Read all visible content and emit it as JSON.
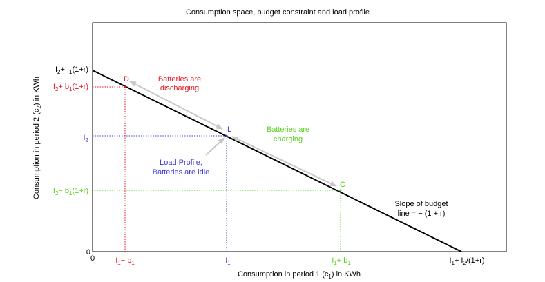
{
  "title": "Consumption space, budget constraint and load profile",
  "x_axis": {
    "label_prefix": "Consumption in period 1 (c",
    "label_sub": "1",
    "label_suffix": ") in KWh",
    "origin_label": "0",
    "ticks": {
      "left": {
        "base": "I",
        "sub": "1",
        "rest": "− b",
        "sub2": "1"
      },
      "mid": {
        "base": "I",
        "sub": "1"
      },
      "right": {
        "base": "I",
        "sub": "1",
        "rest": "+ b",
        "sub2": "1"
      },
      "intercept": {
        "base": "I",
        "sub": "1",
        "rest": "+ I",
        "sub2": "2",
        "tail": "/(1+r)"
      }
    }
  },
  "y_axis": {
    "label_prefix": "Consumption in period 2 (c",
    "label_sub": "2",
    "label_suffix": ") in KWh",
    "origin_label": "0",
    "ticks": {
      "intercept": {
        "base": "I",
        "sub": "2",
        "rest": "+ I",
        "sub2": "1",
        "tail": "(1+r)"
      },
      "upper": {
        "base": "I",
        "sub": "2",
        "rest": "+ b",
        "sub2": "1",
        "tail": "(1+r)"
      },
      "mid": {
        "base": "I",
        "sub": "2"
      },
      "lower": {
        "base": "I",
        "sub": "2",
        "rest": "− b",
        "sub2": "1",
        "tail": "(1+r)"
      }
    }
  },
  "points": {
    "D": "D",
    "L": "L",
    "C": "C"
  },
  "annotations": {
    "discharging": [
      "Batteries are",
      "discharging"
    ],
    "charging": [
      "Batteries are",
      "charging"
    ],
    "idle": [
      "Load Profile,",
      "Batteries are idle"
    ],
    "slope": [
      "Slope of budget",
      "line = − (1 + r)"
    ]
  },
  "colors": {
    "discharge": "#e8141e",
    "idle": "#3c3cdc",
    "charge": "#5ad21e",
    "budget_line": "#000000",
    "arrows": "#c8c8c8"
  }
}
